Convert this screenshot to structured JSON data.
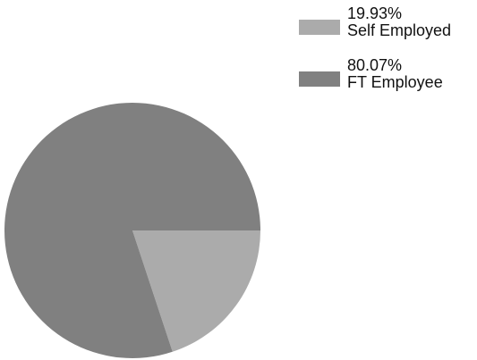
{
  "chart_data": {
    "type": "pie",
    "title": "",
    "slices": [
      {
        "name": "Self Employed",
        "value": 19.93,
        "percent_label": "19.93%",
        "color": "#ababab"
      },
      {
        "name": "FT Employee",
        "value": 80.07,
        "percent_label": "80.07%",
        "color": "#808080"
      }
    ],
    "legend_position": "top-right"
  }
}
